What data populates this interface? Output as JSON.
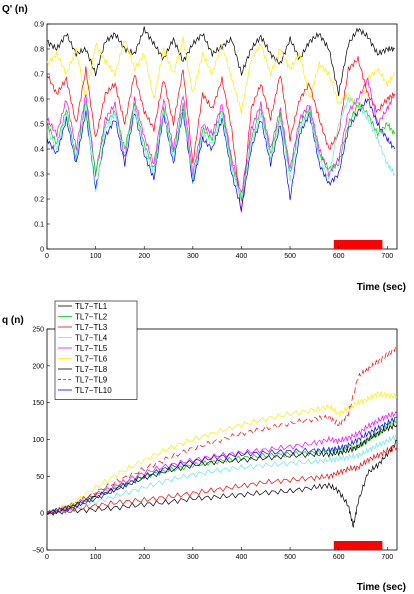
{
  "chart_data": [
    {
      "type": "line",
      "ylabel": "Q' (n)",
      "xlabel": "Time (sec)",
      "xlim": [
        0,
        720
      ],
      "ylim": [
        0,
        0.9
      ],
      "xticks": [
        "0",
        "100",
        "200",
        "300",
        "400",
        "500",
        "600",
        "700"
      ],
      "yticks": [
        "0",
        "0.1",
        "0.2",
        "0.3",
        "0.4",
        "0.5",
        "0.6",
        "0.7",
        "0.8",
        "0.9"
      ],
      "marker_bar": {
        "x": [
          590,
          690
        ],
        "color": "#ff0000"
      },
      "series": [
        {
          "color": "#000000",
          "x": [
            0,
            20,
            40,
            60,
            80,
            100,
            120,
            140,
            160,
            180,
            200,
            220,
            240,
            260,
            280,
            300,
            320,
            340,
            360,
            380,
            400,
            420,
            440,
            460,
            480,
            500,
            520,
            540,
            560,
            580,
            600,
            620,
            640,
            660,
            680,
            700,
            715
          ],
          "y": [
            0.83,
            0.8,
            0.86,
            0.78,
            0.8,
            0.7,
            0.83,
            0.86,
            0.8,
            0.78,
            0.88,
            0.82,
            0.76,
            0.84,
            0.75,
            0.82,
            0.86,
            0.78,
            0.81,
            0.84,
            0.7,
            0.8,
            0.85,
            0.78,
            0.74,
            0.84,
            0.76,
            0.83,
            0.86,
            0.8,
            0.62,
            0.82,
            0.88,
            0.85,
            0.78,
            0.8,
            0.8
          ]
        },
        {
          "color": "#ffee00",
          "x": [
            0,
            20,
            40,
            60,
            80,
            100,
            120,
            140,
            160,
            180,
            200,
            220,
            240,
            260,
            280,
            300,
            320,
            340,
            360,
            380,
            400,
            420,
            440,
            460,
            480,
            500,
            520,
            540,
            560,
            580,
            600,
            620,
            640,
            660,
            680,
            700,
            715
          ],
          "y": [
            0.74,
            0.78,
            0.7,
            0.8,
            0.6,
            0.82,
            0.75,
            0.7,
            0.84,
            0.72,
            0.78,
            0.6,
            0.8,
            0.7,
            0.84,
            0.62,
            0.78,
            0.7,
            0.82,
            0.68,
            0.55,
            0.76,
            0.82,
            0.7,
            0.8,
            0.72,
            0.78,
            0.6,
            0.74,
            0.7,
            0.58,
            0.62,
            0.56,
            0.68,
            0.72,
            0.66,
            0.7
          ]
        },
        {
          "color": "#ff0000",
          "x": [
            0,
            20,
            40,
            60,
            80,
            100,
            120,
            140,
            160,
            180,
            200,
            220,
            240,
            260,
            280,
            300,
            320,
            340,
            360,
            380,
            400,
            420,
            440,
            460,
            480,
            500,
            520,
            540,
            560,
            580,
            600,
            620,
            640,
            660,
            680,
            700,
            715
          ],
          "y": [
            0.7,
            0.62,
            0.68,
            0.5,
            0.72,
            0.44,
            0.62,
            0.66,
            0.5,
            0.7,
            0.55,
            0.48,
            0.68,
            0.5,
            0.72,
            0.34,
            0.62,
            0.56,
            0.68,
            0.48,
            0.14,
            0.56,
            0.66,
            0.52,
            0.7,
            0.44,
            0.6,
            0.66,
            0.52,
            0.4,
            0.46,
            0.72,
            0.76,
            0.62,
            0.55,
            0.6,
            0.62
          ]
        },
        {
          "color": "#ff00ff",
          "x": [
            0,
            20,
            40,
            60,
            80,
            100,
            120,
            140,
            160,
            180,
            200,
            220,
            240,
            260,
            280,
            300,
            320,
            340,
            360,
            380,
            400,
            420,
            440,
            460,
            480,
            500,
            520,
            540,
            560,
            580,
            600,
            620,
            640,
            660,
            680,
            700,
            715
          ],
          "y": [
            0.52,
            0.46,
            0.6,
            0.4,
            0.62,
            0.3,
            0.52,
            0.58,
            0.36,
            0.6,
            0.45,
            0.34,
            0.6,
            0.4,
            0.62,
            0.3,
            0.5,
            0.46,
            0.58,
            0.36,
            0.22,
            0.48,
            0.58,
            0.4,
            0.56,
            0.32,
            0.52,
            0.58,
            0.4,
            0.3,
            0.36,
            0.55,
            0.6,
            0.68,
            0.5,
            0.56,
            0.62
          ]
        },
        {
          "color": "#00cc00",
          "x": [
            0,
            20,
            40,
            60,
            80,
            100,
            120,
            140,
            160,
            180,
            200,
            220,
            240,
            260,
            280,
            300,
            320,
            340,
            360,
            380,
            400,
            420,
            440,
            460,
            480,
            500,
            520,
            540,
            560,
            580,
            600,
            620,
            640,
            660,
            680,
            700,
            715
          ],
          "y": [
            0.5,
            0.42,
            0.56,
            0.36,
            0.6,
            0.3,
            0.5,
            0.55,
            0.4,
            0.58,
            0.42,
            0.32,
            0.56,
            0.38,
            0.58,
            0.26,
            0.48,
            0.44,
            0.56,
            0.34,
            0.2,
            0.44,
            0.56,
            0.38,
            0.54,
            0.3,
            0.5,
            0.56,
            0.38,
            0.32,
            0.34,
            0.5,
            0.58,
            0.54,
            0.46,
            0.5,
            0.46
          ]
        },
        {
          "color": "#0000ff",
          "x": [
            0,
            20,
            40,
            60,
            80,
            100,
            120,
            140,
            160,
            180,
            200,
            220,
            240,
            260,
            280,
            300,
            320,
            340,
            360,
            380,
            400,
            420,
            440,
            460,
            480,
            500,
            520,
            540,
            560,
            580,
            600,
            620,
            640,
            660,
            680,
            700,
            715
          ],
          "y": [
            0.44,
            0.38,
            0.52,
            0.34,
            0.55,
            0.24,
            0.45,
            0.52,
            0.34,
            0.55,
            0.38,
            0.28,
            0.54,
            0.34,
            0.55,
            0.26,
            0.44,
            0.4,
            0.52,
            0.3,
            0.16,
            0.4,
            0.52,
            0.34,
            0.5,
            0.2,
            0.46,
            0.54,
            0.34,
            0.26,
            0.3,
            0.48,
            0.55,
            0.6,
            0.5,
            0.44,
            0.4
          ]
        },
        {
          "color": "#66e8e8",
          "x": [
            0,
            20,
            40,
            60,
            80,
            100,
            120,
            140,
            160,
            180,
            200,
            220,
            240,
            260,
            280,
            300,
            320,
            340,
            360,
            380,
            400,
            420,
            440,
            460,
            480,
            500,
            520,
            540,
            560,
            580,
            600,
            620,
            640,
            660,
            680,
            700,
            715
          ],
          "y": [
            0.48,
            0.4,
            0.54,
            0.36,
            0.58,
            0.22,
            0.48,
            0.54,
            0.38,
            0.56,
            0.4,
            0.3,
            0.55,
            0.36,
            0.56,
            0.28,
            0.46,
            0.42,
            0.54,
            0.32,
            0.2,
            0.42,
            0.54,
            0.36,
            0.52,
            0.28,
            0.48,
            0.55,
            0.36,
            0.28,
            0.5,
            0.6,
            0.58,
            0.52,
            0.44,
            0.34,
            0.3
          ]
        }
      ]
    },
    {
      "type": "line",
      "ylabel": "q (n)",
      "xlabel": "Time (sec)",
      "xlim": [
        0,
        720
      ],
      "ylim": [
        -50,
        250
      ],
      "xticks": [
        "0",
        "100",
        "200",
        "300",
        "400",
        "500",
        "600",
        "700"
      ],
      "yticks": [
        "−50",
        "0",
        "50",
        "100",
        "150",
        "200",
        "250"
      ],
      "marker_bar": {
        "x": [
          590,
          690
        ],
        "color": "#ff0000"
      },
      "legend_position": "top-left",
      "series": [
        {
          "name": "TL7−TL1",
          "color": "#000000",
          "dash": "",
          "x": [
            0,
            50,
            100,
            150,
            200,
            250,
            300,
            350,
            400,
            450,
            500,
            550,
            580,
            600,
            620,
            630,
            640,
            660,
            680,
            700,
            720
          ],
          "y": [
            0,
            3,
            5,
            8,
            12,
            15,
            20,
            22,
            25,
            28,
            30,
            35,
            38,
            30,
            10,
            -18,
            15,
            55,
            65,
            80,
            98
          ]
        },
        {
          "name": "TL7−TL2",
          "color": "#00cc00",
          "dash": "",
          "x": [
            0,
            50,
            100,
            150,
            200,
            250,
            300,
            350,
            400,
            450,
            500,
            550,
            580,
            600,
            620,
            640,
            660,
            680,
            700,
            720
          ],
          "y": [
            0,
            10,
            25,
            38,
            50,
            58,
            65,
            70,
            75,
            78,
            80,
            82,
            84,
            85,
            88,
            90,
            100,
            108,
            118,
            125
          ]
        },
        {
          "name": "TL7−TL3",
          "color": "#ff0000",
          "dash": "",
          "x": [
            0,
            50,
            100,
            150,
            200,
            250,
            300,
            350,
            400,
            450,
            500,
            550,
            580,
            600,
            620,
            640,
            660,
            680,
            700,
            720
          ],
          "y": [
            0,
            5,
            10,
            15,
            18,
            22,
            27,
            32,
            37,
            42,
            45,
            48,
            50,
            55,
            60,
            62,
            72,
            78,
            85,
            90
          ]
        },
        {
          "name": "TL7−TL4",
          "color": "#66e8e8",
          "dash": "",
          "x": [
            0,
            50,
            100,
            150,
            200,
            250,
            300,
            350,
            400,
            450,
            500,
            550,
            580,
            600,
            620,
            640,
            660,
            680,
            700,
            720
          ],
          "y": [
            0,
            6,
            15,
            25,
            35,
            45,
            52,
            58,
            62,
            65,
            68,
            70,
            72,
            74,
            76,
            78,
            85,
            92,
            98,
            105
          ]
        },
        {
          "name": "TL7−TL5",
          "color": "#ff00ff",
          "dash": "",
          "x": [
            0,
            50,
            100,
            150,
            200,
            250,
            300,
            350,
            400,
            450,
            500,
            550,
            580,
            600,
            620,
            640,
            660,
            680,
            700,
            720
          ],
          "y": [
            0,
            8,
            25,
            40,
            55,
            65,
            72,
            78,
            82,
            86,
            90,
            95,
            100,
            98,
            102,
            108,
            118,
            125,
            132,
            135
          ]
        },
        {
          "name": "TL7−TL6",
          "color": "#ffee00",
          "dash": "",
          "x": [
            0,
            50,
            100,
            150,
            200,
            250,
            300,
            350,
            400,
            450,
            500,
            550,
            580,
            600,
            620,
            640,
            660,
            680,
            700,
            720
          ],
          "y": [
            0,
            12,
            35,
            55,
            72,
            88,
            100,
            110,
            120,
            128,
            135,
            140,
            145,
            135,
            142,
            150,
            155,
            162,
            160,
            158
          ]
        },
        {
          "name": "TL7−TL8",
          "color": "#000000",
          "dash": "",
          "x": [
            0,
            50,
            100,
            150,
            200,
            250,
            300,
            350,
            400,
            450,
            500,
            550,
            580,
            600,
            620,
            640,
            660,
            680,
            700,
            720
          ],
          "y": [
            0,
            8,
            22,
            35,
            48,
            58,
            65,
            70,
            72,
            75,
            78,
            80,
            80,
            82,
            85,
            90,
            100,
            108,
            115,
            120
          ]
        },
        {
          "name": "TL7−TL9",
          "color": "#ff0000",
          "dash": "6,3",
          "x": [
            0,
            50,
            100,
            150,
            200,
            250,
            300,
            350,
            400,
            450,
            500,
            550,
            580,
            600,
            620,
            640,
            660,
            680,
            700,
            720
          ],
          "y": [
            0,
            10,
            28,
            45,
            60,
            75,
            88,
            98,
            108,
            115,
            122,
            128,
            130,
            120,
            135,
            185,
            195,
            205,
            215,
            226
          ]
        },
        {
          "name": "TL7−TL10",
          "color": "#0000ff",
          "dash": "",
          "x": [
            0,
            50,
            100,
            150,
            200,
            250,
            300,
            350,
            400,
            450,
            500,
            550,
            580,
            600,
            620,
            640,
            660,
            680,
            700,
            720
          ],
          "y": [
            0,
            8,
            20,
            35,
            50,
            62,
            70,
            76,
            80,
            82,
            84,
            85,
            86,
            88,
            92,
            100,
            108,
            115,
            122,
            130
          ]
        }
      ]
    }
  ]
}
